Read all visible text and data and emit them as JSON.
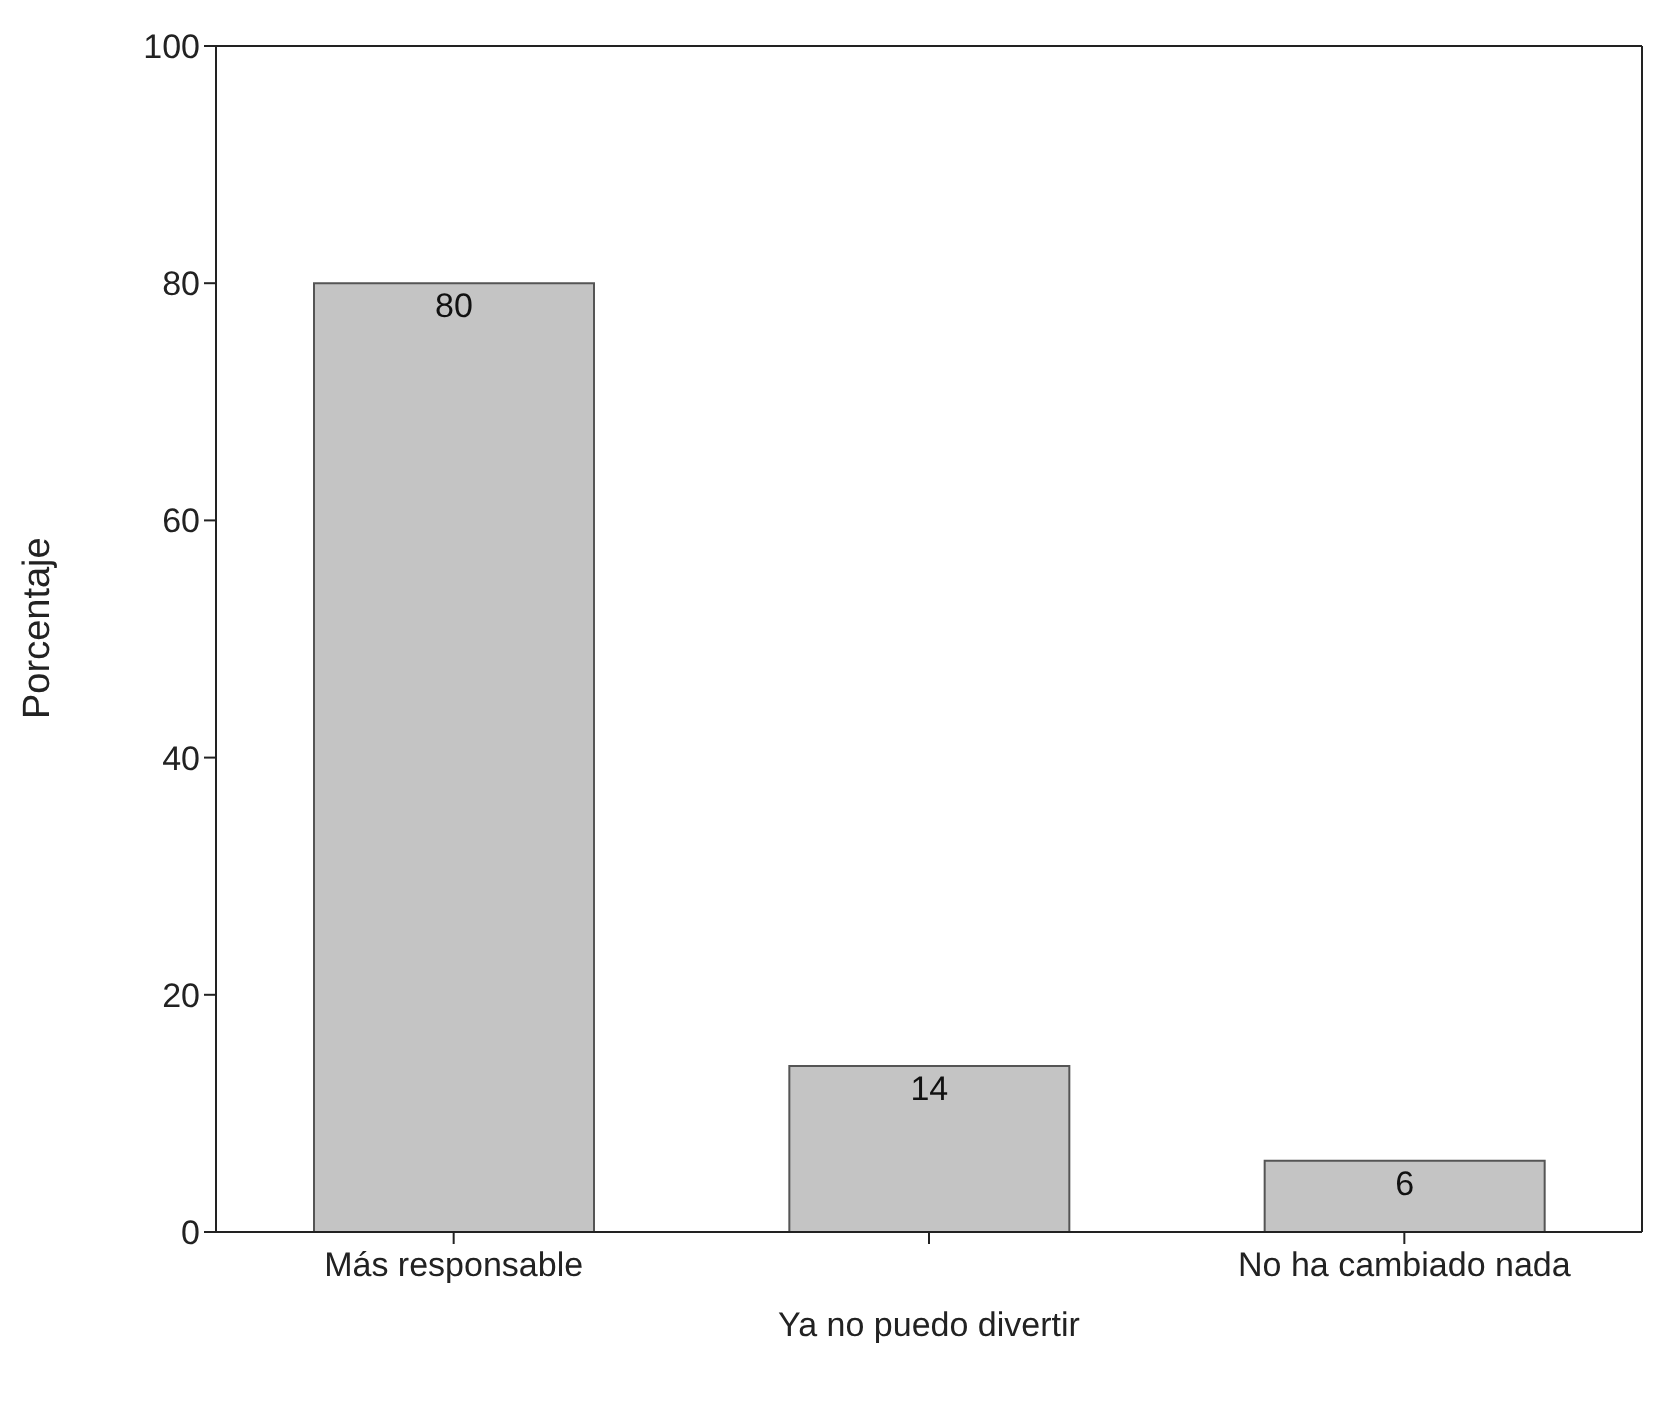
{
  "chart_data": {
    "type": "bar",
    "ylabel": "Porcentaje",
    "categories": [
      "Más responsable",
      "Ya no puedo divertir",
      "No ha cambiado nada"
    ],
    "values": [
      80,
      14,
      6
    ],
    "color": "#c4c4c4",
    "ylim": [
      0,
      100
    ],
    "yticks": [
      0,
      20,
      40,
      60,
      80,
      100
    ],
    "data_labels": true
  }
}
